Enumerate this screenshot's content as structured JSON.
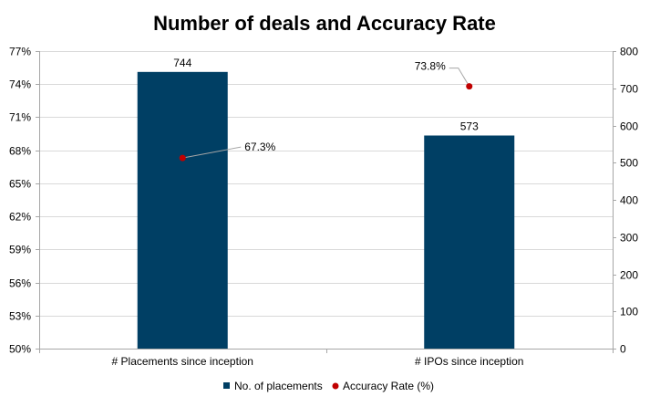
{
  "chart_data": {
    "type": "bar",
    "title": "Number of deals and Accuracy Rate",
    "categories": [
      "# Placements since inception",
      "# IPOs since inception"
    ],
    "series": [
      {
        "name": "No. of placements",
        "kind": "bar",
        "axis": "right",
        "values": [
          744,
          573
        ],
        "labels": [
          "744",
          "573"
        ],
        "color": "#003f64"
      },
      {
        "name": "Accuracy Rate (%)",
        "kind": "scatter",
        "axis": "left",
        "values": [
          67.3,
          73.8
        ],
        "labels": [
          "67.3%",
          "73.8%"
        ],
        "color": "#c00000"
      }
    ],
    "y_left": {
      "min": 50,
      "max": 77,
      "ticks": [
        50,
        53,
        56,
        59,
        62,
        65,
        68,
        71,
        74,
        77
      ],
      "tick_labels": [
        "50%",
        "53%",
        "56%",
        "59%",
        "62%",
        "65%",
        "68%",
        "71%",
        "74%",
        "77%"
      ]
    },
    "y_right": {
      "min": 0,
      "max": 800,
      "ticks": [
        0,
        100,
        200,
        300,
        400,
        500,
        600,
        700,
        800
      ],
      "tick_labels": [
        "0",
        "100",
        "200",
        "300",
        "400",
        "500",
        "600",
        "700",
        "800"
      ]
    },
    "grid": true,
    "legend_position": "bottom"
  }
}
